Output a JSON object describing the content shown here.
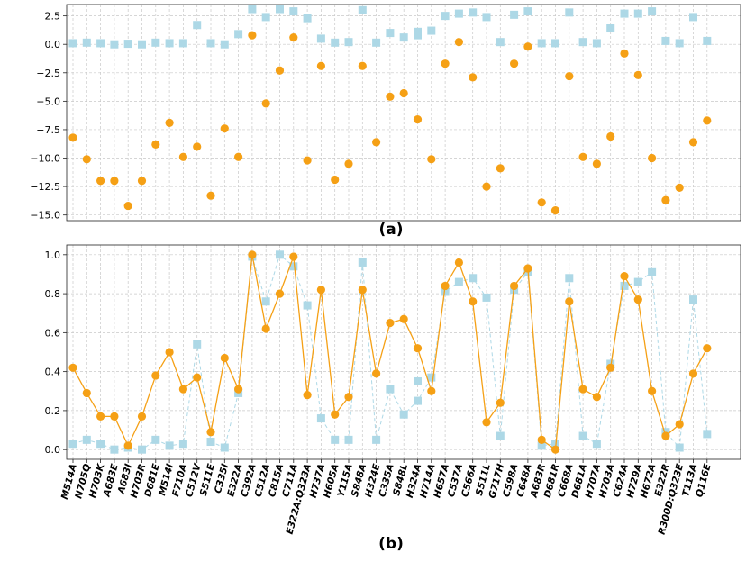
{
  "chart_data": [
    {
      "type": "scatter",
      "panel_label": "(a)",
      "title": "",
      "xlabel": "",
      "ylabel": "",
      "ylim": [
        -15.5,
        3.5
      ],
      "yticks": [
        2.5,
        0.0,
        -2.5,
        -5.0,
        -7.5,
        -10.0,
        -12.5,
        -15.0
      ],
      "ytick_labels": [
        "2.5",
        "0.0",
        "−2.5",
        "−5.0",
        "−7.5",
        "−10.0",
        "−12.5",
        "−15.0"
      ],
      "grid": true,
      "categories": [
        "M514A",
        "N705Q",
        "H703K",
        "A683E",
        "A683I",
        "H703R",
        "D681E",
        "M514I",
        "F710A",
        "C512V",
        "S511E",
        "C335I",
        "E322A",
        "C392A",
        "C512A",
        "C815A",
        "C711A",
        "E322A:Q323A",
        "H737A",
        "H605A",
        "Y115A",
        "S848A",
        "H324E",
        "C335A",
        "S848L",
        "H324A",
        "H714A",
        "H657A",
        "C537A",
        "C566A",
        "S511L",
        "G717H",
        "C598A",
        "C648A",
        "A683R",
        "D681R",
        "C668A",
        "D681A",
        "H707A",
        "H703A",
        "C624A",
        "H729A",
        "H672A",
        "E322R",
        "R300D:Q323E",
        "T113A",
        "Q116E"
      ],
      "series": [
        {
          "name": "series-light-blue",
          "color": "#add8e6",
          "marker": "square",
          "values": [
            0.1,
            0.15,
            0.1,
            0.0,
            0.05,
            0.0,
            0.15,
            0.1,
            0.1,
            1.7,
            0.1,
            0.0,
            0.9,
            3.1,
            2.4,
            3.1,
            2.9,
            2.3,
            0.5,
            0.15,
            0.2,
            3.0,
            0.15,
            1.0,
            0.6,
            0.8,
            1.2,
            2.5,
            2.7,
            2.8,
            2.4,
            0.2,
            2.6,
            2.9,
            0.1,
            0.1,
            2.8,
            0.2,
            0.1,
            1.4,
            2.7,
            2.7,
            2.9,
            0.3,
            0.1,
            2.4,
            0.3
          ],
          "extra_points": [
            [
              25,
              1.1
            ]
          ]
        },
        {
          "name": "series-orange",
          "color": "#f5a015",
          "marker": "circle",
          "values": [
            -8.2,
            -10.1,
            -12.0,
            -12.0,
            -14.2,
            -12.0,
            -8.8,
            -6.9,
            -9.9,
            -9.0,
            -13.3,
            -7.4,
            -9.9,
            0.8,
            -5.2,
            -2.3,
            0.6,
            -10.2,
            -1.9,
            -11.9,
            -10.5,
            -1.9,
            -8.6,
            -4.6,
            -4.3,
            -6.6,
            -10.1,
            -1.7,
            0.2,
            -2.9,
            -12.5,
            -10.9,
            -1.7,
            -0.2,
            -13.9,
            -14.6,
            -2.8,
            -9.9,
            -10.5,
            -8.1,
            -0.8,
            -2.7,
            -10.0,
            -13.7,
            -12.6,
            -8.6,
            -6.7
          ]
        }
      ]
    },
    {
      "type": "line",
      "panel_label": "(b)",
      "title": "",
      "xlabel": "",
      "ylabel": "",
      "ylim": [
        -0.05,
        1.05
      ],
      "yticks": [
        0.0,
        0.2,
        0.4,
        0.6,
        0.8,
        1.0
      ],
      "ytick_labels": [
        "0.0",
        "0.2",
        "0.4",
        "0.6",
        "0.8",
        "1.0"
      ],
      "grid": true,
      "categories": [
        "M514A",
        "N705Q",
        "H703K",
        "A683E",
        "A683I",
        "H703R",
        "D681E",
        "M514I",
        "F710A",
        "C512V",
        "S511E",
        "C335I",
        "E322A",
        "C392A",
        "C512A",
        "C815A",
        "C711A",
        "E322A:Q323A",
        "H737A",
        "H605A",
        "Y115A",
        "S848A",
        "H324E",
        "C335A",
        "S848L",
        "H324A",
        "H714A",
        "H657A",
        "C537A",
        "C566A",
        "S511L",
        "G717H",
        "C598A",
        "C648A",
        "A683R",
        "D681R",
        "C668A",
        "D681A",
        "H707A",
        "H703A",
        "C624A",
        "H729A",
        "H672A",
        "E322R",
        "R300D:Q323E",
        "T113A",
        "Q116E"
      ],
      "series": [
        {
          "name": "series-light-blue",
          "color": "#add8e6",
          "marker": "square",
          "linestyle": "dashed",
          "values": [
            0.03,
            0.05,
            0.03,
            0.0,
            0.01,
            0.0,
            0.05,
            0.02,
            0.03,
            0.54,
            0.04,
            0.01,
            0.29,
            0.99,
            0.76,
            1.0,
            0.94,
            0.74,
            0.16,
            0.05,
            0.05,
            0.96,
            0.05,
            0.31,
            0.18,
            0.25,
            0.37,
            0.81,
            0.86,
            0.88,
            0.78,
            0.07,
            0.82,
            0.91,
            0.02,
            0.03,
            0.88,
            0.07,
            0.03,
            0.44,
            0.84,
            0.86,
            0.91,
            0.09,
            0.01,
            0.77,
            0.08
          ],
          "extra_points": [
            [
              25,
              0.35
            ]
          ]
        },
        {
          "name": "series-orange",
          "color": "#f5a015",
          "marker": "circle",
          "linestyle": "solid",
          "values": [
            0.42,
            0.29,
            0.17,
            0.17,
            0.02,
            0.17,
            0.38,
            0.5,
            0.31,
            0.37,
            0.09,
            0.47,
            0.31,
            1.0,
            0.62,
            0.8,
            0.99,
            0.28,
            0.82,
            0.18,
            0.27,
            0.82,
            0.39,
            0.65,
            0.67,
            0.52,
            0.3,
            0.84,
            0.96,
            0.76,
            0.14,
            0.24,
            0.84,
            0.93,
            0.05,
            0.0,
            0.76,
            0.31,
            0.27,
            0.42,
            0.89,
            0.77,
            0.3,
            0.07,
            0.13,
            0.39,
            0.52
          ]
        }
      ]
    }
  ]
}
